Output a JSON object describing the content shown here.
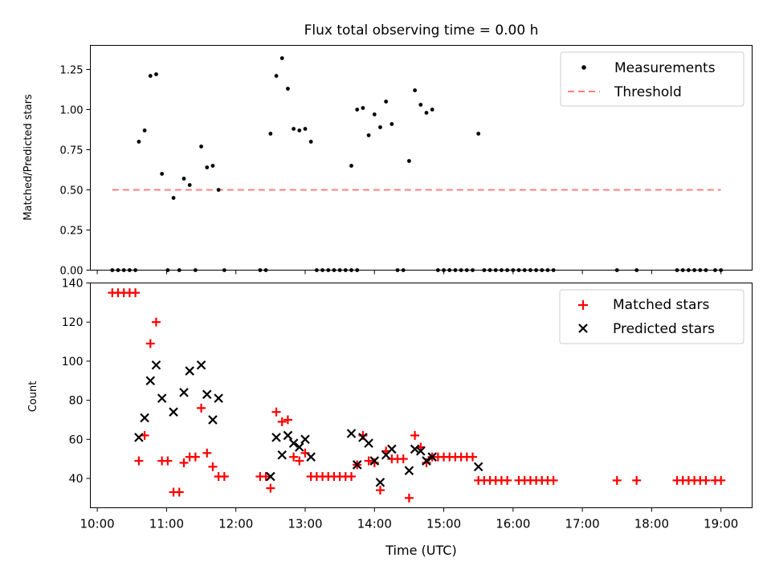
{
  "chart_data": [
    {
      "type": "scatter",
      "title": "Flux total observing time = 0.00 h",
      "xlabel": "",
      "ylabel": "Matched/Predicted stars",
      "xlim": [
        "09:54",
        "19:27"
      ],
      "ylim": [
        0,
        1.4
      ],
      "yticks": [
        "0.00",
        "0.25",
        "0.50",
        "0.75",
        "1.00",
        "1.25"
      ],
      "legend_position": "top-right",
      "threshold": {
        "name": "Threshold",
        "value": 0.5,
        "x_start": "10:13",
        "x_end": "19:00",
        "color": "#ff8080"
      },
      "series": [
        {
          "name": "Measurements",
          "color": "#000000",
          "points": [
            [
              "10:13",
              0
            ],
            [
              "10:18",
              0
            ],
            [
              "10:23",
              0
            ],
            [
              "10:28",
              0
            ],
            [
              "10:33",
              0
            ],
            [
              "10:36",
              0.8
            ],
            [
              "10:41",
              0.87
            ],
            [
              "10:46",
              1.21
            ],
            [
              "10:51",
              1.22
            ],
            [
              "10:56",
              0.6
            ],
            [
              "11:01",
              0
            ],
            [
              "11:06",
              0.45
            ],
            [
              "11:11",
              0
            ],
            [
              "11:15",
              0.57
            ],
            [
              "11:20",
              0.53
            ],
            [
              "11:25",
              0
            ],
            [
              "11:30",
              0.77
            ],
            [
              "11:35",
              0.64
            ],
            [
              "11:40",
              0.65
            ],
            [
              "11:45",
              0.5
            ],
            [
              "11:50",
              0
            ],
            [
              "12:21",
              0
            ],
            [
              "12:26",
              0
            ],
            [
              "12:30",
              0.85
            ],
            [
              "12:35",
              1.21
            ],
            [
              "12:40",
              1.32
            ],
            [
              "12:45",
              1.13
            ],
            [
              "12:50",
              0.88
            ],
            [
              "12:55",
              0.87
            ],
            [
              "13:00",
              0.88
            ],
            [
              "13:05",
              0.8
            ],
            [
              "13:10",
              0
            ],
            [
              "13:15",
              0
            ],
            [
              "13:20",
              0
            ],
            [
              "13:25",
              0
            ],
            [
              "13:30",
              0
            ],
            [
              "13:35",
              0
            ],
            [
              "13:40",
              0
            ],
            [
              "13:45",
              0
            ],
            [
              "13:40",
              0.65
            ],
            [
              "13:45",
              1.0
            ],
            [
              "13:50",
              1.01
            ],
            [
              "13:55",
              0.84
            ],
            [
              "14:00",
              0.97
            ],
            [
              "14:05",
              0.89
            ],
            [
              "14:10",
              1.05
            ],
            [
              "14:15",
              0.91
            ],
            [
              "14:20",
              0
            ],
            [
              "14:25",
              0
            ],
            [
              "14:30",
              0.68
            ],
            [
              "14:35",
              1.12
            ],
            [
              "14:40",
              1.03
            ],
            [
              "14:45",
              0.98
            ],
            [
              "14:50",
              1.0
            ],
            [
              "14:55",
              0
            ],
            [
              "15:00",
              0
            ],
            [
              "15:05",
              0
            ],
            [
              "15:10",
              0
            ],
            [
              "15:15",
              0
            ],
            [
              "15:20",
              0
            ],
            [
              "15:25",
              0
            ],
            [
              "15:30",
              0.85
            ],
            [
              "15:35",
              0
            ],
            [
              "15:40",
              0
            ],
            [
              "15:45",
              0
            ],
            [
              "15:50",
              0
            ],
            [
              "15:55",
              0
            ],
            [
              "16:00",
              0
            ],
            [
              "16:05",
              0
            ],
            [
              "16:10",
              0
            ],
            [
              "16:15",
              0
            ],
            [
              "16:20",
              0
            ],
            [
              "16:25",
              0
            ],
            [
              "16:30",
              0
            ],
            [
              "16:35",
              0
            ],
            [
              "17:30",
              0
            ],
            [
              "17:47",
              0
            ],
            [
              "18:22",
              0
            ],
            [
              "18:27",
              0
            ],
            [
              "18:32",
              0
            ],
            [
              "18:37",
              0
            ],
            [
              "18:42",
              0
            ],
            [
              "18:47",
              0
            ],
            [
              "18:55",
              0
            ],
            [
              "19:00",
              0
            ]
          ]
        }
      ]
    },
    {
      "type": "scatter",
      "title": "",
      "xlabel": "Time (UTC)",
      "ylabel": "Count",
      "xlim": [
        "09:54",
        "19:27"
      ],
      "ylim": [
        25,
        140
      ],
      "yticks": [
        "40",
        "60",
        "80",
        "100",
        "120",
        "140"
      ],
      "xticks": [
        "10:00",
        "11:00",
        "12:00",
        "13:00",
        "14:00",
        "15:00",
        "16:00",
        "17:00",
        "18:00",
        "19:00"
      ],
      "legend_position": "top-right",
      "series": [
        {
          "name": "Matched stars",
          "marker": "plus",
          "color": "#ff0000",
          "points": [
            [
              "10:13",
              135
            ],
            [
              "10:18",
              135
            ],
            [
              "10:23",
              135
            ],
            [
              "10:28",
              135
            ],
            [
              "10:33",
              135
            ],
            [
              "10:36",
              49
            ],
            [
              "10:41",
              62
            ],
            [
              "10:46",
              109
            ],
            [
              "10:51",
              120
            ],
            [
              "10:56",
              49
            ],
            [
              "11:01",
              49
            ],
            [
              "11:06",
              33
            ],
            [
              "11:11",
              33
            ],
            [
              "11:15",
              48
            ],
            [
              "11:20",
              51
            ],
            [
              "11:25",
              51
            ],
            [
              "11:30",
              76
            ],
            [
              "11:35",
              53
            ],
            [
              "11:40",
              46
            ],
            [
              "11:45",
              41
            ],
            [
              "11:50",
              41
            ],
            [
              "12:21",
              41
            ],
            [
              "12:26",
              41
            ],
            [
              "12:30",
              35
            ],
            [
              "12:35",
              74
            ],
            [
              "12:40",
              69
            ],
            [
              "12:45",
              70
            ],
            [
              "12:50",
              51
            ],
            [
              "12:55",
              49
            ],
            [
              "13:00",
              53
            ],
            [
              "13:05",
              41
            ],
            [
              "13:10",
              41
            ],
            [
              "13:15",
              41
            ],
            [
              "13:20",
              41
            ],
            [
              "13:25",
              41
            ],
            [
              "13:30",
              41
            ],
            [
              "13:35",
              41
            ],
            [
              "13:40",
              41
            ],
            [
              "13:45",
              47
            ],
            [
              "13:50",
              62
            ],
            [
              "13:55",
              49
            ],
            [
              "14:00",
              48
            ],
            [
              "14:05",
              34
            ],
            [
              "14:10",
              54
            ],
            [
              "14:15",
              50
            ],
            [
              "14:20",
              50
            ],
            [
              "14:25",
              50
            ],
            [
              "14:30",
              30
            ],
            [
              "14:35",
              62
            ],
            [
              "14:40",
              56
            ],
            [
              "14:45",
              48
            ],
            [
              "14:50",
              51
            ],
            [
              "14:55",
              51
            ],
            [
              "15:00",
              51
            ],
            [
              "15:05",
              51
            ],
            [
              "15:10",
              51
            ],
            [
              "15:15",
              51
            ],
            [
              "15:20",
              51
            ],
            [
              "15:25",
              51
            ],
            [
              "15:30",
              39
            ],
            [
              "15:35",
              39
            ],
            [
              "15:40",
              39
            ],
            [
              "15:45",
              39
            ],
            [
              "15:50",
              39
            ],
            [
              "15:55",
              39
            ],
            [
              "16:05",
              39
            ],
            [
              "16:10",
              39
            ],
            [
              "16:15",
              39
            ],
            [
              "16:20",
              39
            ],
            [
              "16:25",
              39
            ],
            [
              "16:30",
              39
            ],
            [
              "16:35",
              39
            ],
            [
              "17:30",
              39
            ],
            [
              "17:47",
              39
            ],
            [
              "18:22",
              39
            ],
            [
              "18:27",
              39
            ],
            [
              "18:32",
              39
            ],
            [
              "18:37",
              39
            ],
            [
              "18:42",
              39
            ],
            [
              "18:47",
              39
            ],
            [
              "18:55",
              39
            ],
            [
              "19:00",
              39
            ]
          ]
        },
        {
          "name": "Predicted stars",
          "marker": "x",
          "color": "#000000",
          "points": [
            [
              "10:36",
              61
            ],
            [
              "10:41",
              71
            ],
            [
              "10:46",
              90
            ],
            [
              "10:51",
              98
            ],
            [
              "10:56",
              81
            ],
            [
              "11:06",
              74
            ],
            [
              "11:15",
              84
            ],
            [
              "11:20",
              95
            ],
            [
              "11:30",
              98
            ],
            [
              "11:35",
              83
            ],
            [
              "11:40",
              70
            ],
            [
              "11:45",
              81
            ],
            [
              "12:30",
              41
            ],
            [
              "12:35",
              61
            ],
            [
              "12:40",
              52
            ],
            [
              "12:45",
              62
            ],
            [
              "12:50",
              58
            ],
            [
              "12:55",
              56
            ],
            [
              "13:00",
              60
            ],
            [
              "13:05",
              51
            ],
            [
              "13:40",
              63
            ],
            [
              "13:45",
              47
            ],
            [
              "13:50",
              61
            ],
            [
              "13:55",
              58
            ],
            [
              "14:00",
              49
            ],
            [
              "14:05",
              38
            ],
            [
              "14:10",
              52
            ],
            [
              "14:15",
              55
            ],
            [
              "14:30",
              44
            ],
            [
              "14:35",
              55
            ],
            [
              "14:40",
              54
            ],
            [
              "14:45",
              49
            ],
            [
              "14:50",
              51
            ],
            [
              "15:30",
              46
            ]
          ]
        }
      ]
    }
  ]
}
